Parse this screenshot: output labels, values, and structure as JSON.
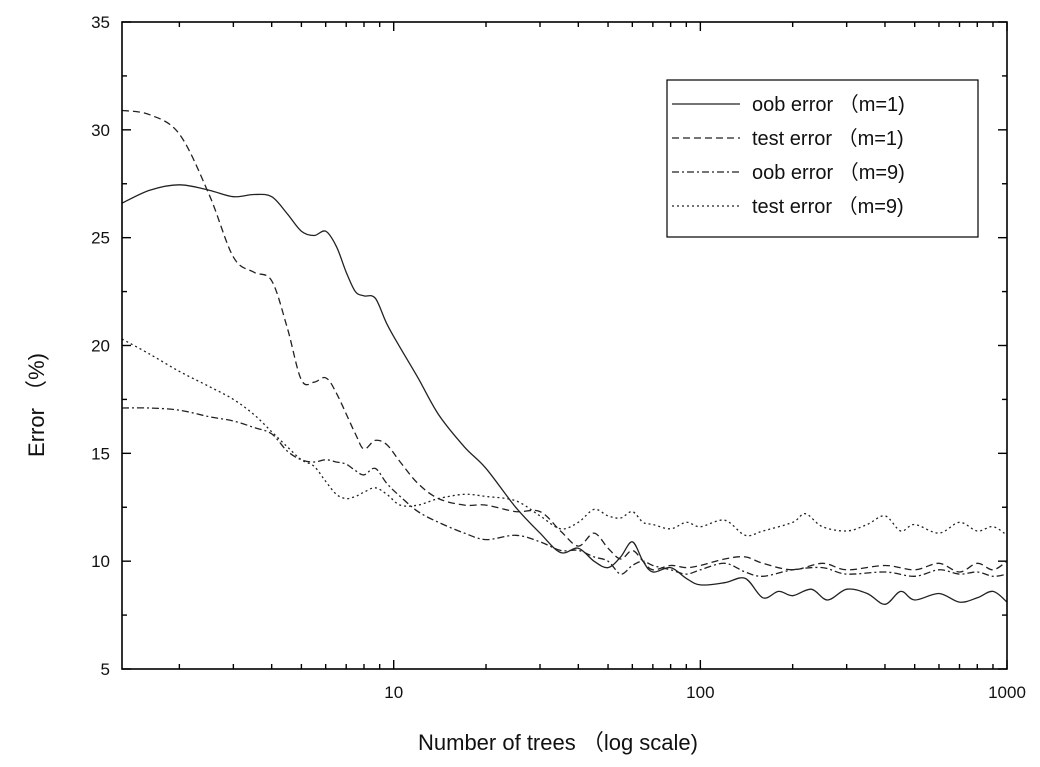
{
  "chart_data": {
    "type": "line",
    "title": "",
    "xlabel": "Number of trees （log scale)",
    "ylabel": "Error （%)",
    "x_scale": "log",
    "xlim": [
      1.3,
      1000
    ],
    "ylim": [
      5,
      35
    ],
    "x_ticks": [
      {
        "value": 10,
        "label": "10"
      },
      {
        "value": 100,
        "label": "100"
      },
      {
        "value": 1000,
        "label": "1000"
      }
    ],
    "y_ticks": [
      {
        "value": 5,
        "label": "5"
      },
      {
        "value": 10,
        "label": "10"
      },
      {
        "value": 15,
        "label": "15"
      },
      {
        "value": 20,
        "label": "20"
      },
      {
        "value": 25,
        "label": "25"
      },
      {
        "value": 30,
        "label": "30"
      },
      {
        "value": 35,
        "label": "35"
      }
    ],
    "grid": false,
    "legend_position": "top-right",
    "series": [
      {
        "name": "oob error （m=1)",
        "dash": "solid",
        "points": [
          [
            1.3,
            26.6
          ],
          [
            1.6,
            27.2
          ],
          [
            2,
            27.45
          ],
          [
            2.5,
            27.2
          ],
          [
            3,
            26.9
          ],
          [
            3.5,
            27.0
          ],
          [
            4,
            26.9
          ],
          [
            4.5,
            26.1
          ],
          [
            5,
            25.3
          ],
          [
            5.5,
            25.1
          ],
          [
            6,
            25.3
          ],
          [
            6.5,
            24.6
          ],
          [
            7,
            23.4
          ],
          [
            7.5,
            22.5
          ],
          [
            8,
            22.3
          ],
          [
            8.7,
            22.2
          ],
          [
            9.5,
            21.0
          ],
          [
            10.5,
            19.9
          ],
          [
            12,
            18.5
          ],
          [
            14,
            16.8
          ],
          [
            17,
            15.3
          ],
          [
            20,
            14.3
          ],
          [
            25,
            12.5
          ],
          [
            30,
            11.3
          ],
          [
            35,
            10.4
          ],
          [
            40,
            10.6
          ],
          [
            45,
            10.0
          ],
          [
            50,
            9.7
          ],
          [
            55,
            10.2
          ],
          [
            60,
            10.9
          ],
          [
            65,
            10.0
          ],
          [
            70,
            9.5
          ],
          [
            80,
            9.7
          ],
          [
            90,
            9.2
          ],
          [
            100,
            8.9
          ],
          [
            120,
            9.0
          ],
          [
            140,
            9.2
          ],
          [
            160,
            8.3
          ],
          [
            180,
            8.6
          ],
          [
            200,
            8.4
          ],
          [
            230,
            8.7
          ],
          [
            260,
            8.2
          ],
          [
            300,
            8.7
          ],
          [
            350,
            8.5
          ],
          [
            400,
            8.0
          ],
          [
            450,
            8.6
          ],
          [
            500,
            8.2
          ],
          [
            600,
            8.5
          ],
          [
            700,
            8.1
          ],
          [
            800,
            8.3
          ],
          [
            900,
            8.6
          ],
          [
            1000,
            8.1
          ]
        ]
      },
      {
        "name": "test error （m=1)",
        "dash": "dashed",
        "points": [
          [
            1.3,
            30.9
          ],
          [
            1.6,
            30.7
          ],
          [
            2,
            29.8
          ],
          [
            2.5,
            27.0
          ],
          [
            3,
            24.1
          ],
          [
            3.5,
            23.4
          ],
          [
            4,
            23.0
          ],
          [
            4.5,
            20.8
          ],
          [
            5,
            18.4
          ],
          [
            5.5,
            18.3
          ],
          [
            6,
            18.5
          ],
          [
            6.5,
            17.8
          ],
          [
            7.5,
            15.9
          ],
          [
            8,
            15.2
          ],
          [
            8.7,
            15.6
          ],
          [
            9.5,
            15.4
          ],
          [
            10.5,
            14.6
          ],
          [
            12,
            13.6
          ],
          [
            14,
            12.9
          ],
          [
            17,
            12.6
          ],
          [
            20,
            12.6
          ],
          [
            25,
            12.3
          ],
          [
            30,
            12.3
          ],
          [
            35,
            11.4
          ],
          [
            40,
            10.7
          ],
          [
            45,
            11.3
          ],
          [
            50,
            10.6
          ],
          [
            55,
            10.1
          ],
          [
            60,
            10.5
          ],
          [
            65,
            10.0
          ],
          [
            70,
            9.6
          ],
          [
            80,
            9.8
          ],
          [
            90,
            9.7
          ],
          [
            100,
            9.8
          ],
          [
            120,
            10.1
          ],
          [
            140,
            10.2
          ],
          [
            160,
            9.9
          ],
          [
            200,
            9.6
          ],
          [
            250,
            9.9
          ],
          [
            300,
            9.6
          ],
          [
            400,
            9.8
          ],
          [
            500,
            9.6
          ],
          [
            600,
            9.9
          ],
          [
            700,
            9.5
          ],
          [
            800,
            9.9
          ],
          [
            900,
            9.6
          ],
          [
            1000,
            10.0
          ]
        ]
      },
      {
        "name": "oob error （m=9)",
        "dash": "dashdot",
        "points": [
          [
            1.3,
            17.1
          ],
          [
            1.6,
            17.1
          ],
          [
            2,
            17.0
          ],
          [
            2.5,
            16.7
          ],
          [
            3,
            16.5
          ],
          [
            3.5,
            16.2
          ],
          [
            4,
            15.9
          ],
          [
            4.5,
            15.1
          ],
          [
            5,
            14.7
          ],
          [
            5.5,
            14.6
          ],
          [
            6,
            14.7
          ],
          [
            6.5,
            14.6
          ],
          [
            7,
            14.5
          ],
          [
            7.5,
            14.2
          ],
          [
            8,
            14.0
          ],
          [
            8.7,
            14.3
          ],
          [
            9.5,
            13.6
          ],
          [
            10.5,
            13.0
          ],
          [
            12,
            12.3
          ],
          [
            14,
            11.8
          ],
          [
            17,
            11.3
          ],
          [
            20,
            11.0
          ],
          [
            25,
            11.2
          ],
          [
            30,
            10.9
          ],
          [
            35,
            10.5
          ],
          [
            40,
            10.5
          ],
          [
            45,
            10.2
          ],
          [
            50,
            10.0
          ],
          [
            55,
            9.4
          ],
          [
            60,
            9.8
          ],
          [
            65,
            10.0
          ],
          [
            70,
            9.8
          ],
          [
            80,
            9.6
          ],
          [
            90,
            9.4
          ],
          [
            100,
            9.6
          ],
          [
            120,
            9.9
          ],
          [
            140,
            9.5
          ],
          [
            160,
            9.3
          ],
          [
            200,
            9.6
          ],
          [
            250,
            9.7
          ],
          [
            300,
            9.4
          ],
          [
            400,
            9.5
          ],
          [
            500,
            9.3
          ],
          [
            600,
            9.6
          ],
          [
            700,
            9.4
          ],
          [
            800,
            9.5
          ],
          [
            900,
            9.3
          ],
          [
            1000,
            9.4
          ]
        ]
      },
      {
        "name": "test error （m=9)",
        "dash": "dotted",
        "points": [
          [
            1.3,
            20.3
          ],
          [
            1.6,
            19.6
          ],
          [
            2,
            18.8
          ],
          [
            2.5,
            18.1
          ],
          [
            3,
            17.5
          ],
          [
            3.5,
            16.8
          ],
          [
            4,
            16.0
          ],
          [
            4.5,
            15.3
          ],
          [
            5,
            14.7
          ],
          [
            5.5,
            14.4
          ],
          [
            6,
            13.7
          ],
          [
            6.5,
            13.1
          ],
          [
            7,
            12.9
          ],
          [
            7.5,
            13.0
          ],
          [
            8,
            13.2
          ],
          [
            8.7,
            13.4
          ],
          [
            9.5,
            13.1
          ],
          [
            10.5,
            12.6
          ],
          [
            12,
            12.6
          ],
          [
            14,
            12.9
          ],
          [
            17,
            13.1
          ],
          [
            20,
            13.0
          ],
          [
            25,
            12.8
          ],
          [
            30,
            12.1
          ],
          [
            35,
            11.5
          ],
          [
            40,
            11.8
          ],
          [
            45,
            12.4
          ],
          [
            50,
            12.1
          ],
          [
            55,
            12.0
          ],
          [
            60,
            12.3
          ],
          [
            65,
            11.8
          ],
          [
            70,
            11.7
          ],
          [
            80,
            11.5
          ],
          [
            90,
            11.8
          ],
          [
            100,
            11.6
          ],
          [
            120,
            11.9
          ],
          [
            140,
            11.2
          ],
          [
            160,
            11.4
          ],
          [
            200,
            11.8
          ],
          [
            220,
            12.2
          ],
          [
            250,
            11.6
          ],
          [
            300,
            11.4
          ],
          [
            350,
            11.7
          ],
          [
            400,
            12.1
          ],
          [
            450,
            11.4
          ],
          [
            500,
            11.7
          ],
          [
            600,
            11.3
          ],
          [
            700,
            11.8
          ],
          [
            800,
            11.4
          ],
          [
            900,
            11.6
          ],
          [
            1000,
            11.2
          ]
        ]
      }
    ]
  }
}
